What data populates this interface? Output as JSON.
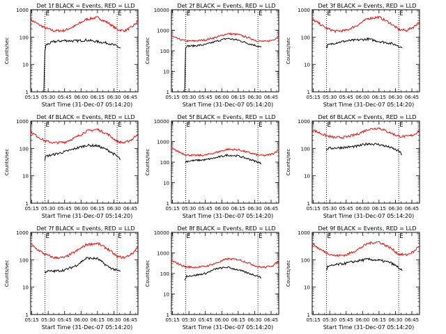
{
  "chart_data": [
    {
      "type": "line",
      "title": "Det 1f BLACK = Events, RED = LLD",
      "ylabel": "Counts/sec",
      "xlabel": "Start Time (31-Dec-07 05:14:20)",
      "marker_label": "E",
      "yscale": "log",
      "ylim": [
        1,
        1000
      ],
      "yticks": [
        "1",
        "10",
        "100",
        "1000"
      ],
      "xticks": [
        "05:15",
        "05:30",
        "05:45",
        "06:00",
        "06:15",
        "06:30",
        "06:45"
      ],
      "xlim": [
        "05:14",
        "06:52"
      ],
      "vlines": [
        "05:27",
        "06:33"
      ],
      "series": [
        {
          "color": "#ff0000",
          "x": [
            "05:14",
            "05:20",
            "05:27",
            "05:35",
            "05:45",
            "05:55",
            "06:05",
            "06:15",
            "06:25",
            "06:33",
            "06:40",
            "06:47",
            "06:52"
          ],
          "values": [
            430,
            310,
            220,
            170,
            175,
            260,
            450,
            520,
            330,
            190,
            170,
            240,
            380
          ]
        },
        {
          "color": "#000000",
          "x": [
            "05:26",
            "05:27",
            "05:28",
            "05:35",
            "05:45",
            "05:55",
            "06:05",
            "06:15",
            "06:25",
            "06:32",
            "06:36"
          ],
          "values": [
            1,
            30,
            52,
            68,
            75,
            72,
            78,
            68,
            60,
            48,
            40
          ]
        }
      ]
    },
    {
      "type": "line",
      "title": "Det 2f BLACK = Events, RED = LLD",
      "ylabel": "Counts/sec",
      "xlabel": "Start Time (31-Dec-07 05:14:20)",
      "marker_label": "E",
      "yscale": "log",
      "ylim": [
        1,
        10000
      ],
      "yticks": [
        "1",
        "10",
        "100",
        "1000",
        "10000"
      ],
      "xticks": [
        "05:15",
        "05:30",
        "05:45",
        "06:00",
        "06:15",
        "06:30",
        "06:45"
      ],
      "xlim": [
        "05:14",
        "06:52"
      ],
      "vlines": [
        "05:27",
        "06:33"
      ],
      "series": [
        {
          "color": "#ff0000",
          "x": [
            "05:14",
            "05:20",
            "05:27",
            "05:35",
            "05:45",
            "05:55",
            "06:05",
            "06:15",
            "06:25",
            "06:33",
            "06:40",
            "06:47",
            "06:52"
          ],
          "values": [
            520,
            380,
            300,
            300,
            340,
            460,
            680,
            620,
            420,
            300,
            280,
            340,
            520
          ]
        },
        {
          "color": "#000000",
          "x": [
            "05:26",
            "05:27",
            "05:28",
            "05:35",
            "05:45",
            "05:55",
            "06:05",
            "06:15",
            "06:25",
            "06:33",
            "06:36"
          ],
          "values": [
            1,
            150,
            170,
            175,
            200,
            290,
            400,
            330,
            220,
            170,
            150
          ]
        }
      ]
    },
    {
      "type": "line",
      "title": "Det 3f BLACK = Events, RED = LLD",
      "ylabel": "Counts/sec",
      "xlabel": "Start Time (31-Dec-07 05:14:20)",
      "marker_label": "E",
      "yscale": "log",
      "ylim": [
        1,
        1000
      ],
      "yticks": [
        "1",
        "10",
        "100",
        "1000"
      ],
      "xticks": [
        "05:15",
        "05:30",
        "05:45",
        "06:00",
        "06:15",
        "06:30",
        "06:45"
      ],
      "xlim": [
        "05:14",
        "06:52"
      ],
      "vlines": [
        "05:27",
        "06:33"
      ],
      "series": [
        {
          "color": "#ff0000",
          "x": [
            "05:14",
            "05:20",
            "05:27",
            "05:35",
            "05:45",
            "05:55",
            "06:05",
            "06:15",
            "06:25",
            "06:33",
            "06:40",
            "06:47",
            "06:52"
          ],
          "values": [
            450,
            320,
            210,
            165,
            175,
            270,
            480,
            540,
            330,
            190,
            175,
            240,
            380
          ]
        },
        {
          "color": "#000000",
          "x": [
            "05:27",
            "05:28",
            "05:35",
            "05:45",
            "05:55",
            "06:05",
            "06:15",
            "06:25",
            "06:32",
            "06:36"
          ],
          "values": [
            42,
            50,
            62,
            72,
            78,
            85,
            70,
            60,
            50,
            40
          ]
        }
      ]
    },
    {
      "type": "line",
      "title": "Det 4f BLACK = Events, RED = LLD",
      "ylabel": "Counts/sec",
      "xlabel": "Start Time (31-Dec-07 05:14:20)",
      "marker_label": "E",
      "yscale": "log",
      "ylim": [
        1,
        1000
      ],
      "yticks": [
        "1",
        "10",
        "100",
        "1000"
      ],
      "xticks": [
        "05:15",
        "05:30",
        "05:45",
        "06:00",
        "06:15",
        "06:30",
        "06:45"
      ],
      "xlim": [
        "05:14",
        "06:52"
      ],
      "vlines": [
        "05:27",
        "06:33"
      ],
      "series": [
        {
          "color": "#ff0000",
          "x": [
            "05:14",
            "05:20",
            "05:27",
            "05:35",
            "05:45",
            "05:55",
            "06:05",
            "06:15",
            "06:25",
            "06:33",
            "06:40",
            "06:47",
            "06:52"
          ],
          "values": [
            400,
            280,
            190,
            160,
            170,
            250,
            430,
            500,
            320,
            180,
            160,
            220,
            360
          ]
        },
        {
          "color": "#000000",
          "x": [
            "05:27",
            "05:28",
            "05:35",
            "05:45",
            "05:55",
            "06:05",
            "06:15",
            "06:25",
            "06:32",
            "06:36"
          ],
          "values": [
            40,
            52,
            60,
            75,
            100,
            130,
            125,
            85,
            55,
            40
          ]
        }
      ]
    },
    {
      "type": "line",
      "title": "Det 5f BLACK = Events, RED = LLD",
      "ylabel": "Counts/sec",
      "xlabel": "Start Time (31-Dec-07 05:14:20)",
      "marker_label": "E",
      "yscale": "log",
      "ylim": [
        1,
        10000
      ],
      "yticks": [
        "1",
        "10",
        "100",
        "1000",
        "10000"
      ],
      "xticks": [
        "05:15",
        "05:30",
        "05:45",
        "06:00",
        "06:15",
        "06:30",
        "06:45"
      ],
      "xlim": [
        "05:14",
        "06:52"
      ],
      "vlines": [
        "05:27",
        "06:33"
      ],
      "series": [
        {
          "color": "#ff0000",
          "x": [
            "05:14",
            "05:20",
            "05:27",
            "05:35",
            "05:45",
            "05:55",
            "06:05",
            "06:15",
            "06:25",
            "06:33",
            "06:40",
            "06:47",
            "06:52"
          ],
          "values": [
            470,
            330,
            230,
            210,
            220,
            300,
            420,
            400,
            290,
            220,
            210,
            260,
            420
          ]
        },
        {
          "color": "#000000",
          "x": [
            "05:27",
            "05:28",
            "05:35",
            "05:45",
            "05:55",
            "06:05",
            "06:15",
            "06:25",
            "06:33",
            "06:36"
          ],
          "values": [
            100,
            110,
            120,
            130,
            165,
            220,
            200,
            140,
            100,
            85
          ]
        }
      ]
    },
    {
      "type": "line",
      "title": "Det 6f BLACK = Events, RED = LLD",
      "ylabel": "Counts/sec",
      "xlabel": "Start Time (31-Dec-07 05:14:20)",
      "marker_label": "E",
      "yscale": "log",
      "ylim": [
        1,
        1000
      ],
      "yticks": [
        "1",
        "10",
        "100",
        "1000"
      ],
      "xticks": [
        "05:15",
        "05:30",
        "05:45",
        "06:00",
        "06:15",
        "06:30",
        "06:45"
      ],
      "xlim": [
        "05:14",
        "06:52"
      ],
      "vlines": [
        "05:27",
        "06:33"
      ],
      "series": [
        {
          "color": "#ff0000",
          "x": [
            "05:14",
            "05:20",
            "05:27",
            "05:35",
            "05:45",
            "05:55",
            "06:05",
            "06:15",
            "06:25",
            "06:33",
            "06:40",
            "06:47",
            "06:52"
          ],
          "values": [
            490,
            380,
            290,
            250,
            260,
            330,
            500,
            560,
            380,
            280,
            270,
            320,
            470
          ]
        },
        {
          "color": "#000000",
          "x": [
            "05:27",
            "05:28",
            "05:35",
            "05:45",
            "05:55",
            "06:05",
            "06:15",
            "06:25",
            "06:33",
            "06:36"
          ],
          "values": [
            80,
            100,
            105,
            110,
            120,
            150,
            140,
            110,
            80,
            60
          ]
        }
      ]
    },
    {
      "type": "line",
      "title": "Det 7f BLACK = Events, RED = LLD",
      "ylabel": "Counts/sec",
      "xlabel": "Start Time (31-Dec-07 05:14:20)",
      "marker_label": "E",
      "yscale": "log",
      "ylim": [
        1,
        1000
      ],
      "yticks": [
        "1",
        "10",
        "100",
        "1000"
      ],
      "xticks": [
        "05:15",
        "05:30",
        "05:45",
        "06:00",
        "06:15",
        "06:30",
        "06:45"
      ],
      "xlim": [
        "05:14",
        "06:52"
      ],
      "vlines": [
        "05:27",
        "06:33"
      ],
      "series": [
        {
          "color": "#ff0000",
          "x": [
            "05:14",
            "05:20",
            "05:27",
            "05:35",
            "05:45",
            "05:55",
            "06:05",
            "06:15",
            "06:25",
            "06:33",
            "06:40",
            "06:47",
            "06:52"
          ],
          "values": [
            370,
            240,
            160,
            120,
            120,
            200,
            360,
            400,
            240,
            130,
            120,
            170,
            300
          ]
        },
        {
          "color": "#000000",
          "x": [
            "05:27",
            "05:28",
            "05:35",
            "05:45",
            "05:55",
            "06:05",
            "06:15",
            "06:25",
            "06:33",
            "06:36"
          ],
          "values": [
            35,
            38,
            38,
            42,
            60,
            115,
            110,
            55,
            40,
            38
          ]
        }
      ]
    },
    {
      "type": "line",
      "title": "Det 8f BLACK = Events, RED = LLD",
      "ylabel": "Counts/sec",
      "xlabel": "Start Time (31-Dec-07 05:14:20)",
      "marker_label": "E",
      "yscale": "log",
      "ylim": [
        1,
        10000
      ],
      "yticks": [
        "1",
        "10",
        "100",
        "1000",
        "10000"
      ],
      "xticks": [
        "05:15",
        "05:30",
        "05:45",
        "06:00",
        "06:15",
        "06:30",
        "06:45"
      ],
      "xlim": [
        "05:14",
        "06:52"
      ],
      "vlines": [
        "05:27",
        "06:33"
      ],
      "series": [
        {
          "color": "#ff0000",
          "x": [
            "05:14",
            "05:20",
            "05:27",
            "05:35",
            "05:45",
            "05:55",
            "06:05",
            "06:15",
            "06:25",
            "06:33",
            "06:40",
            "06:47",
            "06:52"
          ],
          "values": [
            420,
            300,
            210,
            200,
            220,
            320,
            520,
            480,
            320,
            210,
            200,
            250,
            400
          ]
        },
        {
          "color": "#000000",
          "x": [
            "05:26",
            "05:27",
            "05:28",
            "05:35",
            "05:45",
            "05:55",
            "06:05",
            "06:15",
            "06:25",
            "06:33",
            "06:36"
          ],
          "values": [
            45,
            60,
            75,
            80,
            100,
            170,
            200,
            150,
            100,
            75,
            60
          ]
        }
      ]
    },
    {
      "type": "line",
      "title": "Det 9f BLACK = Events, RED = LLD",
      "ylabel": "Counts/sec",
      "xlabel": "Start Time (31-Dec-07 05:14:20)",
      "marker_label": "E",
      "yscale": "log",
      "ylim": [
        1,
        1000
      ],
      "yticks": [
        "1",
        "10",
        "100",
        "1000"
      ],
      "xticks": [
        "05:15",
        "05:30",
        "05:45",
        "06:00",
        "06:15",
        "06:30",
        "06:45"
      ],
      "xlim": [
        "05:14",
        "06:52"
      ],
      "vlines": [
        "05:27",
        "06:33"
      ],
      "series": [
        {
          "color": "#ff0000",
          "x": [
            "05:14",
            "05:20",
            "05:27",
            "05:35",
            "05:45",
            "05:55",
            "06:05",
            "06:15",
            "06:25",
            "06:33",
            "06:40",
            "06:47",
            "06:52"
          ],
          "values": [
            390,
            260,
            180,
            140,
            150,
            230,
            400,
            450,
            280,
            160,
            150,
            200,
            340
          ]
        },
        {
          "color": "#000000",
          "x": [
            "05:27",
            "05:28",
            "05:35",
            "05:45",
            "05:55",
            "06:05",
            "06:15",
            "06:25",
            "06:32",
            "06:36"
          ],
          "values": [
            40,
            55,
            65,
            75,
            90,
            105,
            95,
            80,
            55,
            40
          ]
        }
      ]
    }
  ]
}
